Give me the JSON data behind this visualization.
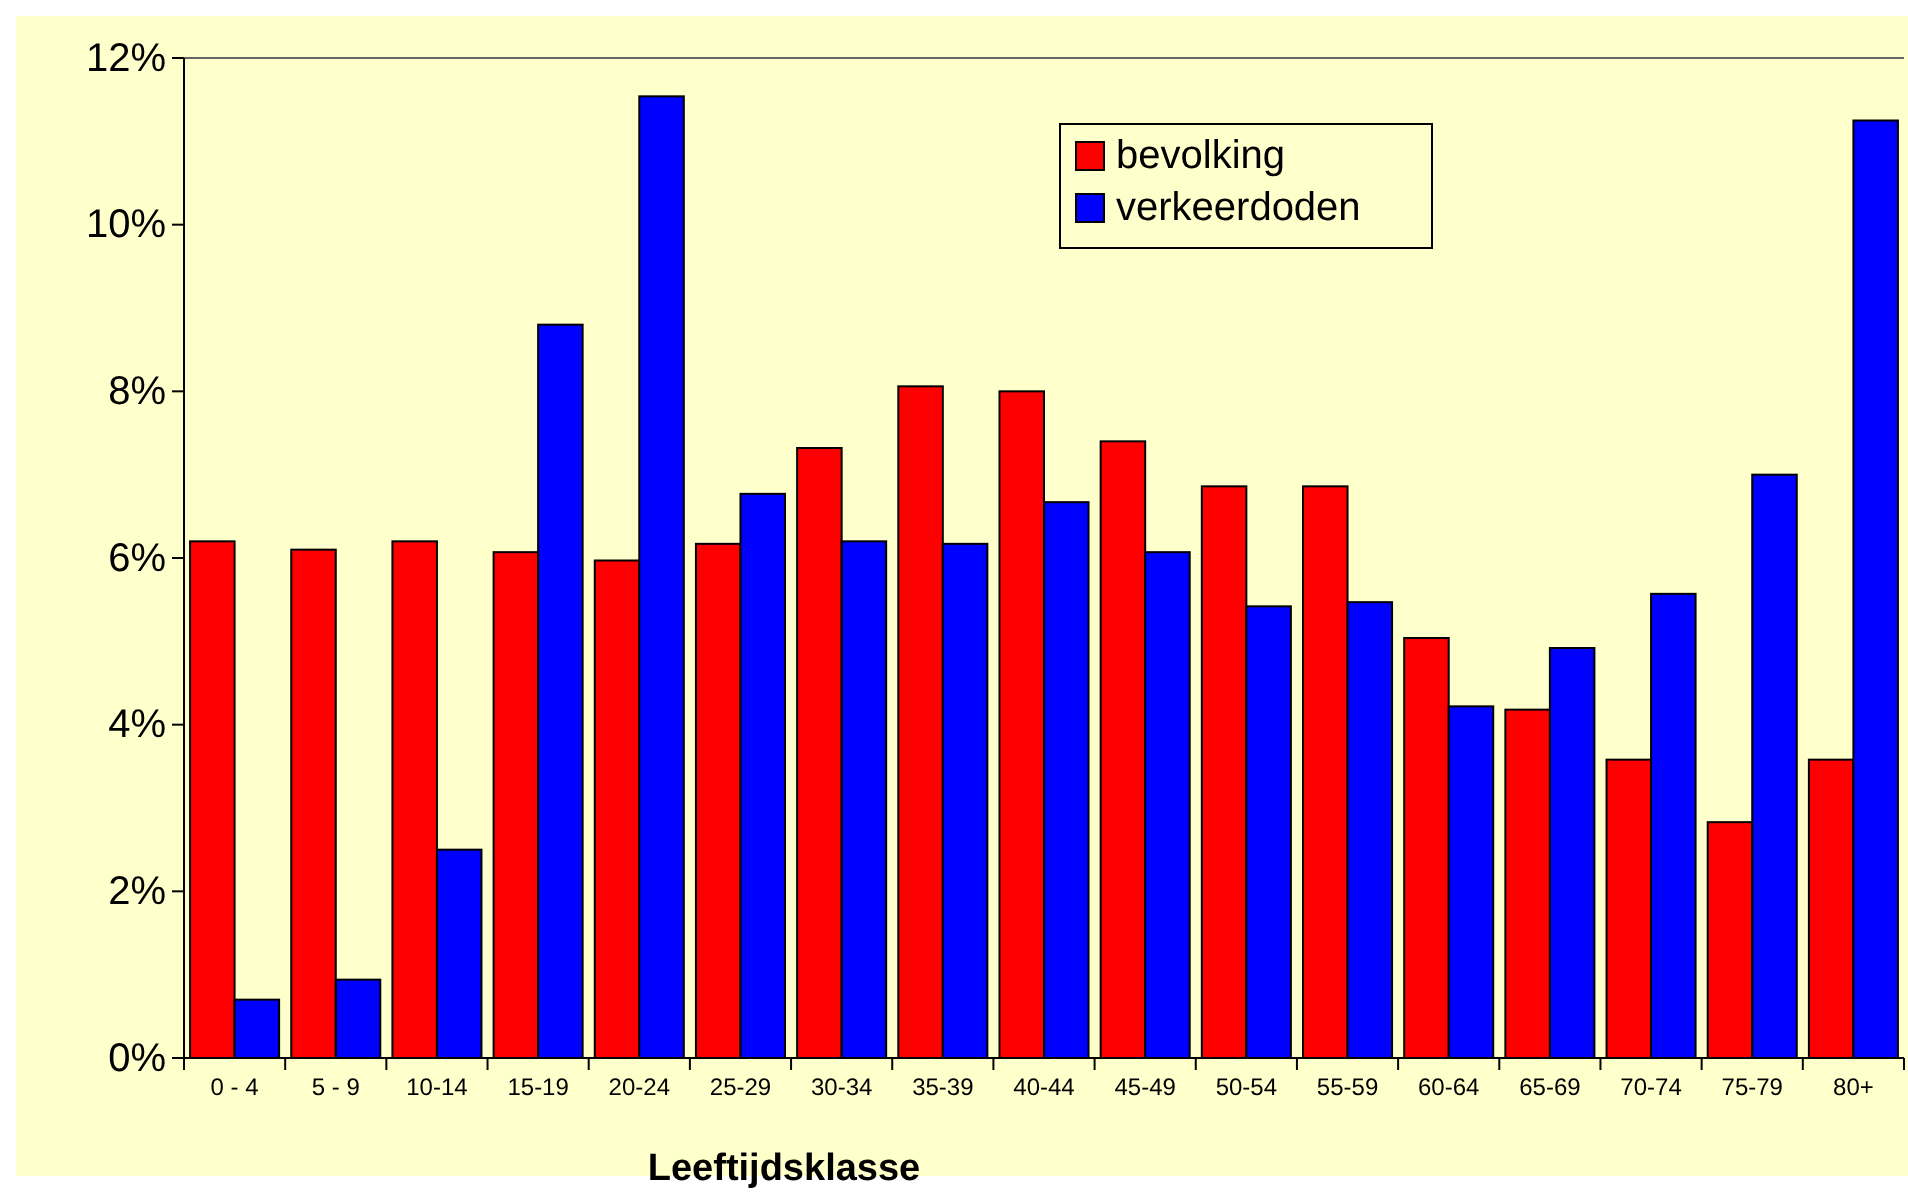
{
  "chart_data": {
    "type": "bar",
    "xlabel": "Leeftijdsklasse",
    "categories": [
      "0 - 4",
      "5 - 9",
      "10-14",
      "15-19",
      "20-24",
      "25-29",
      "30-34",
      "35-39",
      "40-44",
      "45-49",
      "50-54",
      "55-59",
      "60-64",
      "65-69",
      "70-74",
      "75-79",
      "80+"
    ],
    "series": [
      {
        "name": "bevolking",
        "color": "#ff0000",
        "values": [
          6.2,
          6.1,
          6.2,
          6.07,
          5.97,
          6.17,
          7.32,
          8.06,
          8.0,
          7.4,
          6.86,
          6.86,
          5.04,
          4.18,
          3.58,
          2.83,
          3.58
        ]
      },
      {
        "name": "verkeerdoden",
        "color": "#0000ff",
        "values": [
          0.7,
          0.94,
          2.5,
          8.8,
          11.54,
          6.77,
          6.2,
          6.17,
          6.67,
          6.07,
          5.42,
          5.47,
          4.22,
          4.92,
          5.57,
          7.0,
          11.25
        ]
      }
    ],
    "ylim": [
      0,
      12
    ],
    "yticks": [
      {
        "value": 0,
        "label": "0%"
      },
      {
        "value": 2,
        "label": "2%"
      },
      {
        "value": 4,
        "label": "4%"
      },
      {
        "value": 6,
        "label": "6%"
      },
      {
        "value": 8,
        "label": "8%"
      },
      {
        "value": 10,
        "label": "10%"
      },
      {
        "value": 12,
        "label": "12%"
      }
    ],
    "grid": false,
    "legend": "top right"
  }
}
